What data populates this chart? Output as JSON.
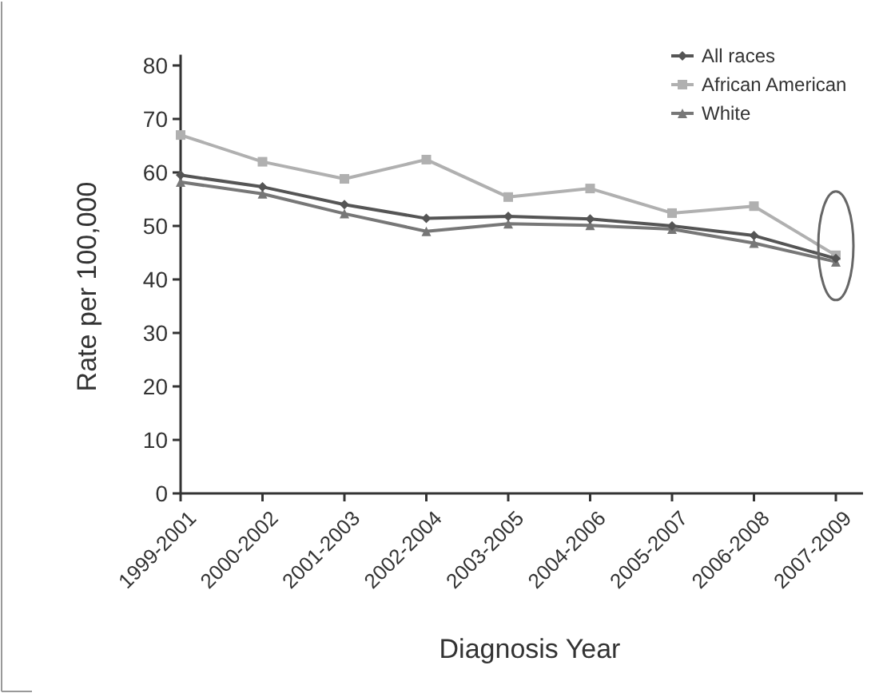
{
  "chart_data": {
    "type": "line",
    "xlabel": "Diagnosis Year",
    "ylabel": "Rate per 100,000",
    "categories": [
      "1999-2001",
      "2000-2002",
      "2001-2003",
      "2002-2004",
      "2003-2005",
      "2004-2006",
      "2005-2007",
      "2006-2008",
      "2007-2009"
    ],
    "series": [
      {
        "name": "All races",
        "color": "#555555",
        "marker": "diamond",
        "values": [
          59.5,
          57.3,
          54,
          51.4,
          51.8,
          51.3,
          50,
          48.2,
          43.9
        ]
      },
      {
        "name": "African American",
        "color": "#b0b0b0",
        "marker": "square",
        "values": [
          67,
          62,
          58.8,
          62.4,
          55.4,
          57,
          52.4,
          53.7,
          44.5
        ]
      },
      {
        "name": "White",
        "color": "#777777",
        "marker": "triangle",
        "values": [
          58.2,
          56,
          52.3,
          49,
          50.4,
          50.1,
          49.4,
          46.8,
          43.3
        ]
      }
    ],
    "ylim": [
      0,
      82
    ],
    "yticks": [
      0,
      10,
      20,
      30,
      40,
      50,
      60,
      70,
      80
    ],
    "grid": false,
    "legend": "top right",
    "line_style": "solid"
  }
}
